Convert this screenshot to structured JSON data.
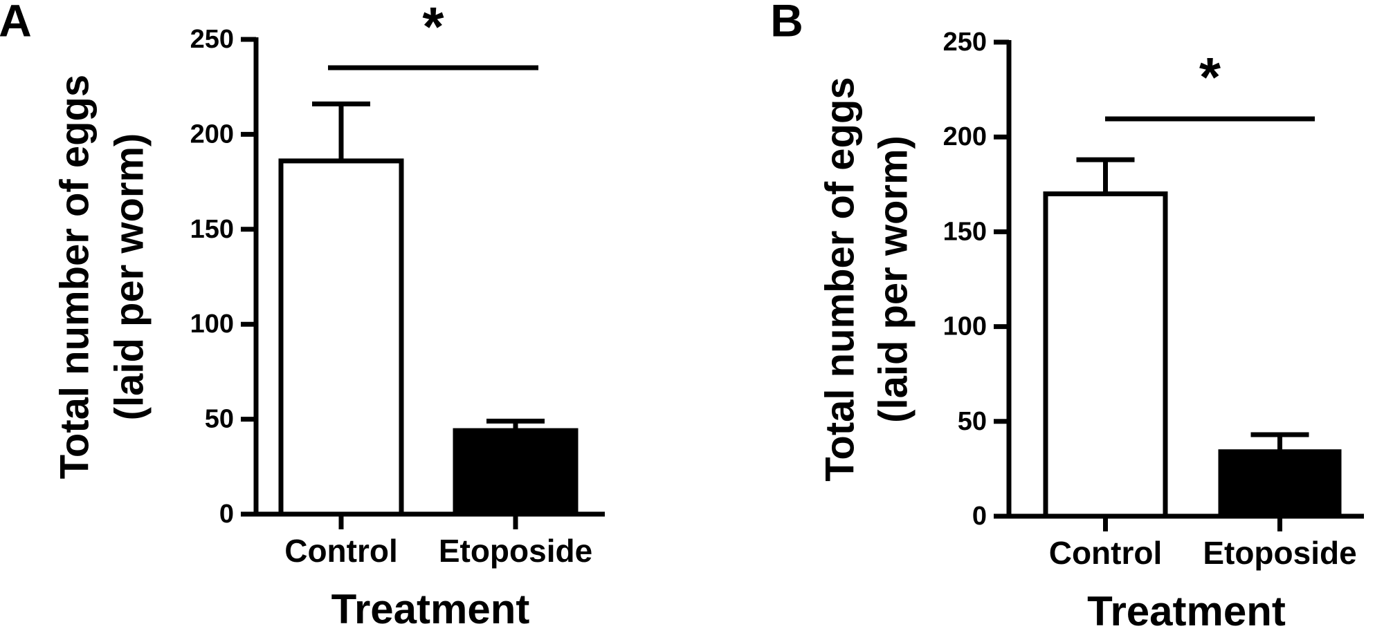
{
  "chart_data": [
    {
      "type": "bar",
      "panel": "A",
      "ylabel": [
        "Total number of eggs",
        "(laid per worm)"
      ],
      "xlabel": "Treatment",
      "categories": [
        "Control",
        "Etoposide"
      ],
      "values": [
        186,
        44
      ],
      "errors": [
        30,
        5
      ],
      "colors": [
        "#ffffff",
        "#000000"
      ],
      "ylim": [
        0,
        250
      ],
      "yticks": [
        0,
        50,
        100,
        150,
        200,
        250
      ],
      "significance": "*"
    },
    {
      "type": "bar",
      "panel": "B",
      "ylabel": [
        "Total number of eggs",
        "(laid per worm)"
      ],
      "xlabel": "Treatment",
      "categories": [
        "Control",
        "Etoposide"
      ],
      "values": [
        170,
        34
      ],
      "errors": [
        18,
        9
      ],
      "colors": [
        "#ffffff",
        "#000000"
      ],
      "ylim": [
        0,
        250
      ],
      "yticks": [
        0,
        50,
        100,
        150,
        200,
        250
      ],
      "significance": "*"
    }
  ]
}
